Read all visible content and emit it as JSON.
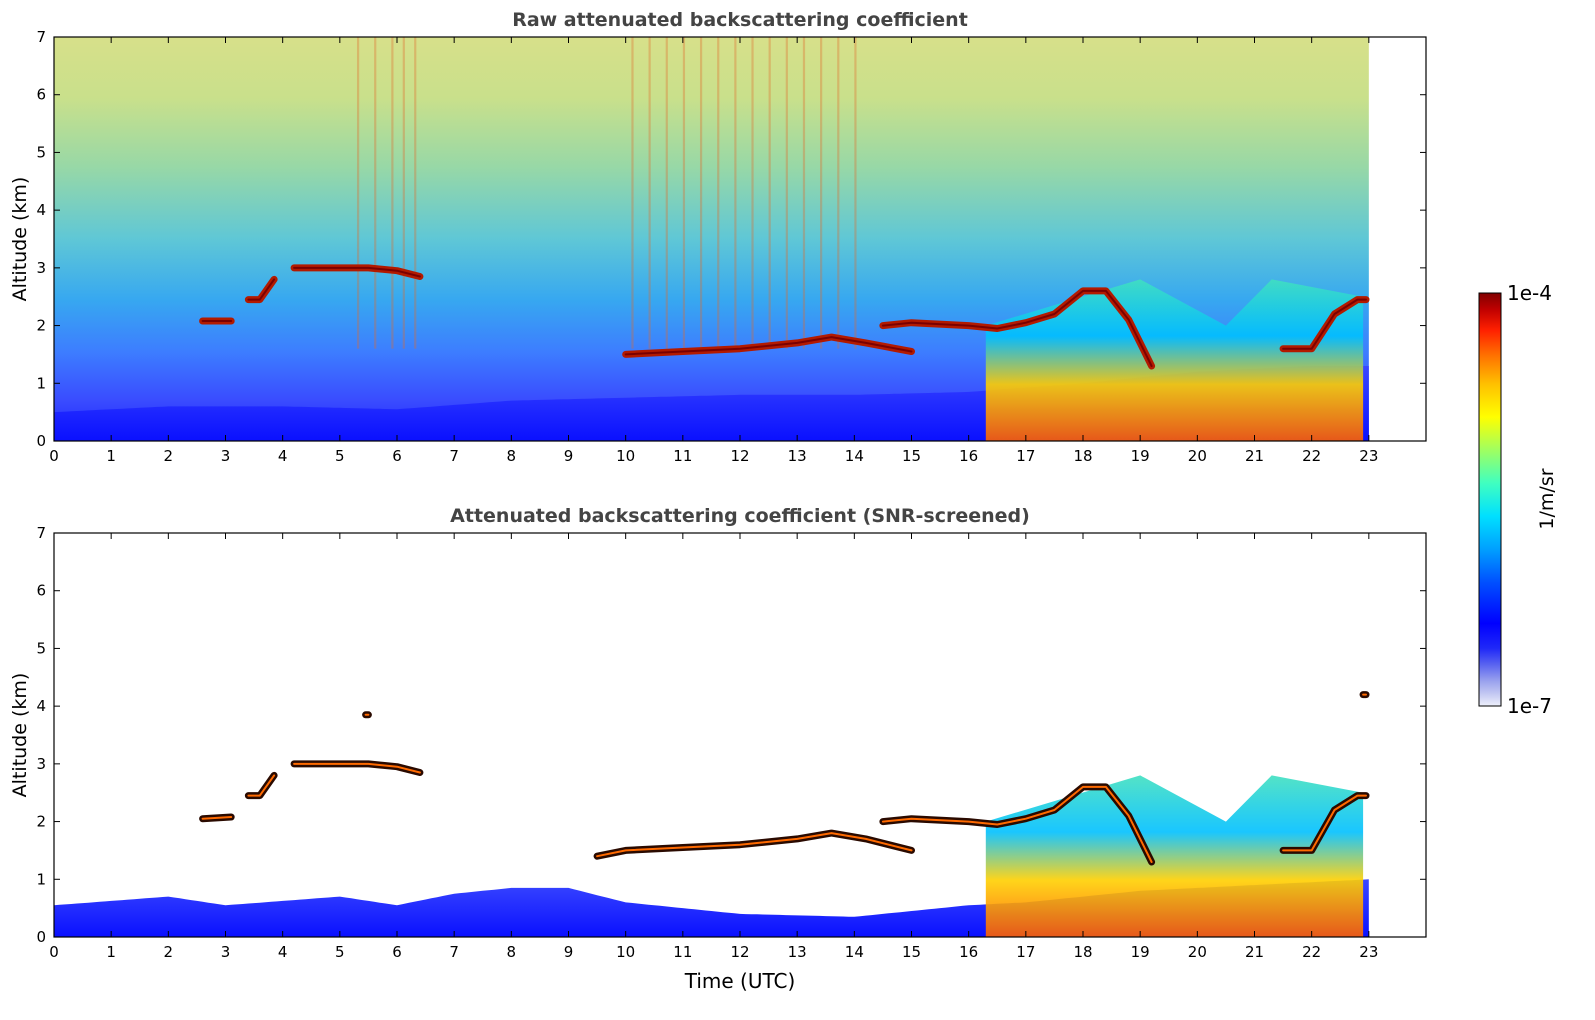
{
  "chart_data": [
    {
      "type": "heatmap",
      "title": "Raw attenuated backscattering coefficient",
      "xlabel": "",
      "ylabel": "Altitude (km)",
      "xlim": [
        0,
        24
      ],
      "ylim": [
        0,
        7
      ],
      "x_ticks": [
        "0",
        "1",
        "2",
        "3",
        "4",
        "5",
        "6",
        "7",
        "8",
        "9",
        "10",
        "11",
        "12",
        "13",
        "14",
        "15",
        "16",
        "17",
        "18",
        "19",
        "20",
        "21",
        "22",
        "23"
      ],
      "y_ticks": [
        "0",
        "1",
        "2",
        "3",
        "4",
        "5",
        "6",
        "7"
      ],
      "data_time_range": [
        0,
        23
      ],
      "features": {
        "boundary_layer": [
          [
            0,
            0.5
          ],
          [
            2,
            0.6
          ],
          [
            4,
            0.6
          ],
          [
            6,
            0.55
          ],
          [
            8,
            0.7
          ],
          [
            10,
            0.75
          ],
          [
            12,
            0.8
          ],
          [
            14,
            0.8
          ],
          [
            16,
            0.85
          ],
          [
            18,
            1.0
          ],
          [
            20,
            1.2
          ],
          [
            22,
            1.3
          ],
          [
            23,
            1.3
          ]
        ],
        "cloud_layers": [
          {
            "points": [
              [
                2.6,
                2.08
              ],
              [
                3.1,
                2.08
              ]
            ]
          },
          {
            "points": [
              [
                3.4,
                2.45
              ],
              [
                3.6,
                2.45
              ],
              [
                3.85,
                2.8
              ]
            ]
          },
          {
            "points": [
              [
                4.2,
                3.0
              ],
              [
                4.6,
                3.0
              ],
              [
                5.1,
                3.0
              ],
              [
                5.5,
                3.0
              ],
              [
                6.0,
                2.95
              ],
              [
                6.4,
                2.85
              ]
            ]
          },
          {
            "points": [
              [
                10.0,
                1.5
              ],
              [
                11.0,
                1.55
              ],
              [
                12.0,
                1.6
              ],
              [
                13.0,
                1.7
              ],
              [
                13.6,
                1.8
              ],
              [
                14.2,
                1.7
              ],
              [
                15.0,
                1.55
              ]
            ]
          },
          {
            "points": [
              [
                14.5,
                2.0
              ],
              [
                15.0,
                2.05
              ],
              [
                16.0,
                2.0
              ],
              [
                16.5,
                1.95
              ],
              [
                17.0,
                2.05
              ],
              [
                17.5,
                2.2
              ],
              [
                18.0,
                2.6
              ],
              [
                18.4,
                2.6
              ],
              [
                18.8,
                2.1
              ],
              [
                19.2,
                1.3
              ]
            ]
          },
          {
            "points": [
              [
                21.5,
                1.6
              ],
              [
                22.0,
                1.6
              ],
              [
                22.4,
                2.2
              ],
              [
                22.8,
                2.45
              ],
              [
                22.95,
                2.45
              ]
            ]
          }
        ],
        "low_cloud_precip_region": [
          [
            16.3,
            2.0
          ],
          [
            19.0,
            2.8
          ],
          [
            20.5,
            2.0
          ],
          [
            21.3,
            2.8
          ],
          [
            22.9,
            2.5
          ]
        ]
      }
    },
    {
      "type": "heatmap",
      "title": "Attenuated backscattering coefficient (SNR-screened)",
      "xlabel": "Time (UTC)",
      "ylabel": "Altitude (km)",
      "xlim": [
        0,
        24
      ],
      "ylim": [
        0,
        7
      ],
      "x_ticks": [
        "0",
        "1",
        "2",
        "3",
        "4",
        "5",
        "6",
        "7",
        "8",
        "9",
        "10",
        "11",
        "12",
        "13",
        "14",
        "15",
        "16",
        "17",
        "18",
        "19",
        "20",
        "21",
        "22",
        "23"
      ],
      "y_ticks": [
        "0",
        "1",
        "2",
        "3",
        "4",
        "5",
        "6",
        "7"
      ],
      "data_time_range": [
        0,
        23
      ],
      "features": {
        "boundary_layer": [
          [
            0,
            0.55
          ],
          [
            2,
            0.7
          ],
          [
            3,
            0.55
          ],
          [
            5,
            0.7
          ],
          [
            6,
            0.55
          ],
          [
            7,
            0.75
          ],
          [
            8,
            0.85
          ],
          [
            9,
            0.85
          ],
          [
            10,
            0.6
          ],
          [
            12,
            0.4
          ],
          [
            14,
            0.35
          ],
          [
            16,
            0.55
          ],
          [
            17,
            0.6
          ],
          [
            19,
            0.8
          ],
          [
            23,
            1.0
          ]
        ],
        "cloud_layers": [
          {
            "points": [
              [
                2.6,
                2.05
              ],
              [
                3.1,
                2.08
              ]
            ]
          },
          {
            "points": [
              [
                3.4,
                2.45
              ],
              [
                3.6,
                2.45
              ],
              [
                3.85,
                2.8
              ]
            ]
          },
          {
            "points": [
              [
                4.2,
                3.0
              ],
              [
                4.6,
                3.0
              ],
              [
                5.1,
                3.0
              ],
              [
                5.5,
                3.0
              ],
              [
                6.0,
                2.95
              ],
              [
                6.4,
                2.85
              ]
            ]
          },
          {
            "points": [
              [
                5.45,
                3.85
              ],
              [
                5.5,
                3.85
              ]
            ]
          },
          {
            "points": [
              [
                9.5,
                1.4
              ],
              [
                10.0,
                1.5
              ],
              [
                11.0,
                1.55
              ],
              [
                12.0,
                1.6
              ],
              [
                13.0,
                1.7
              ],
              [
                13.6,
                1.8
              ],
              [
                14.2,
                1.7
              ],
              [
                15.0,
                1.5
              ]
            ]
          },
          {
            "points": [
              [
                14.5,
                2.0
              ],
              [
                15.0,
                2.05
              ],
              [
                16.0,
                2.0
              ],
              [
                16.5,
                1.95
              ],
              [
                17.0,
                2.05
              ],
              [
                17.5,
                2.2
              ],
              [
                18.0,
                2.6
              ],
              [
                18.4,
                2.6
              ],
              [
                18.8,
                2.1
              ],
              [
                19.2,
                1.3
              ]
            ]
          },
          {
            "points": [
              [
                21.5,
                1.5
              ],
              [
                22.0,
                1.5
              ],
              [
                22.4,
                2.2
              ],
              [
                22.8,
                2.45
              ],
              [
                22.95,
                2.45
              ]
            ]
          },
          {
            "points": [
              [
                22.9,
                4.2
              ],
              [
                22.95,
                4.2
              ]
            ]
          }
        ],
        "low_cloud_precip_region": [
          [
            16.3,
            2.0
          ],
          [
            19.0,
            2.8
          ],
          [
            20.5,
            2.0
          ],
          [
            21.3,
            2.8
          ],
          [
            22.9,
            2.5
          ]
        ]
      }
    }
  ],
  "colorbar": {
    "max_label": "1e-4",
    "min_label": "1e-7",
    "unit_label": "1/m/sr",
    "scale": "log",
    "colors": [
      "#eef0fb",
      "#c3c8f2",
      "#9aa2ee",
      "#5a64f0",
      "#1f28f8",
      "#0000ff",
      "#0050ff",
      "#00a0ff",
      "#00e0ff",
      "#40ffc0",
      "#a0ff60",
      "#ffff00",
      "#ffc000",
      "#ff7000",
      "#ff2000",
      "#c00000",
      "#800000"
    ]
  }
}
